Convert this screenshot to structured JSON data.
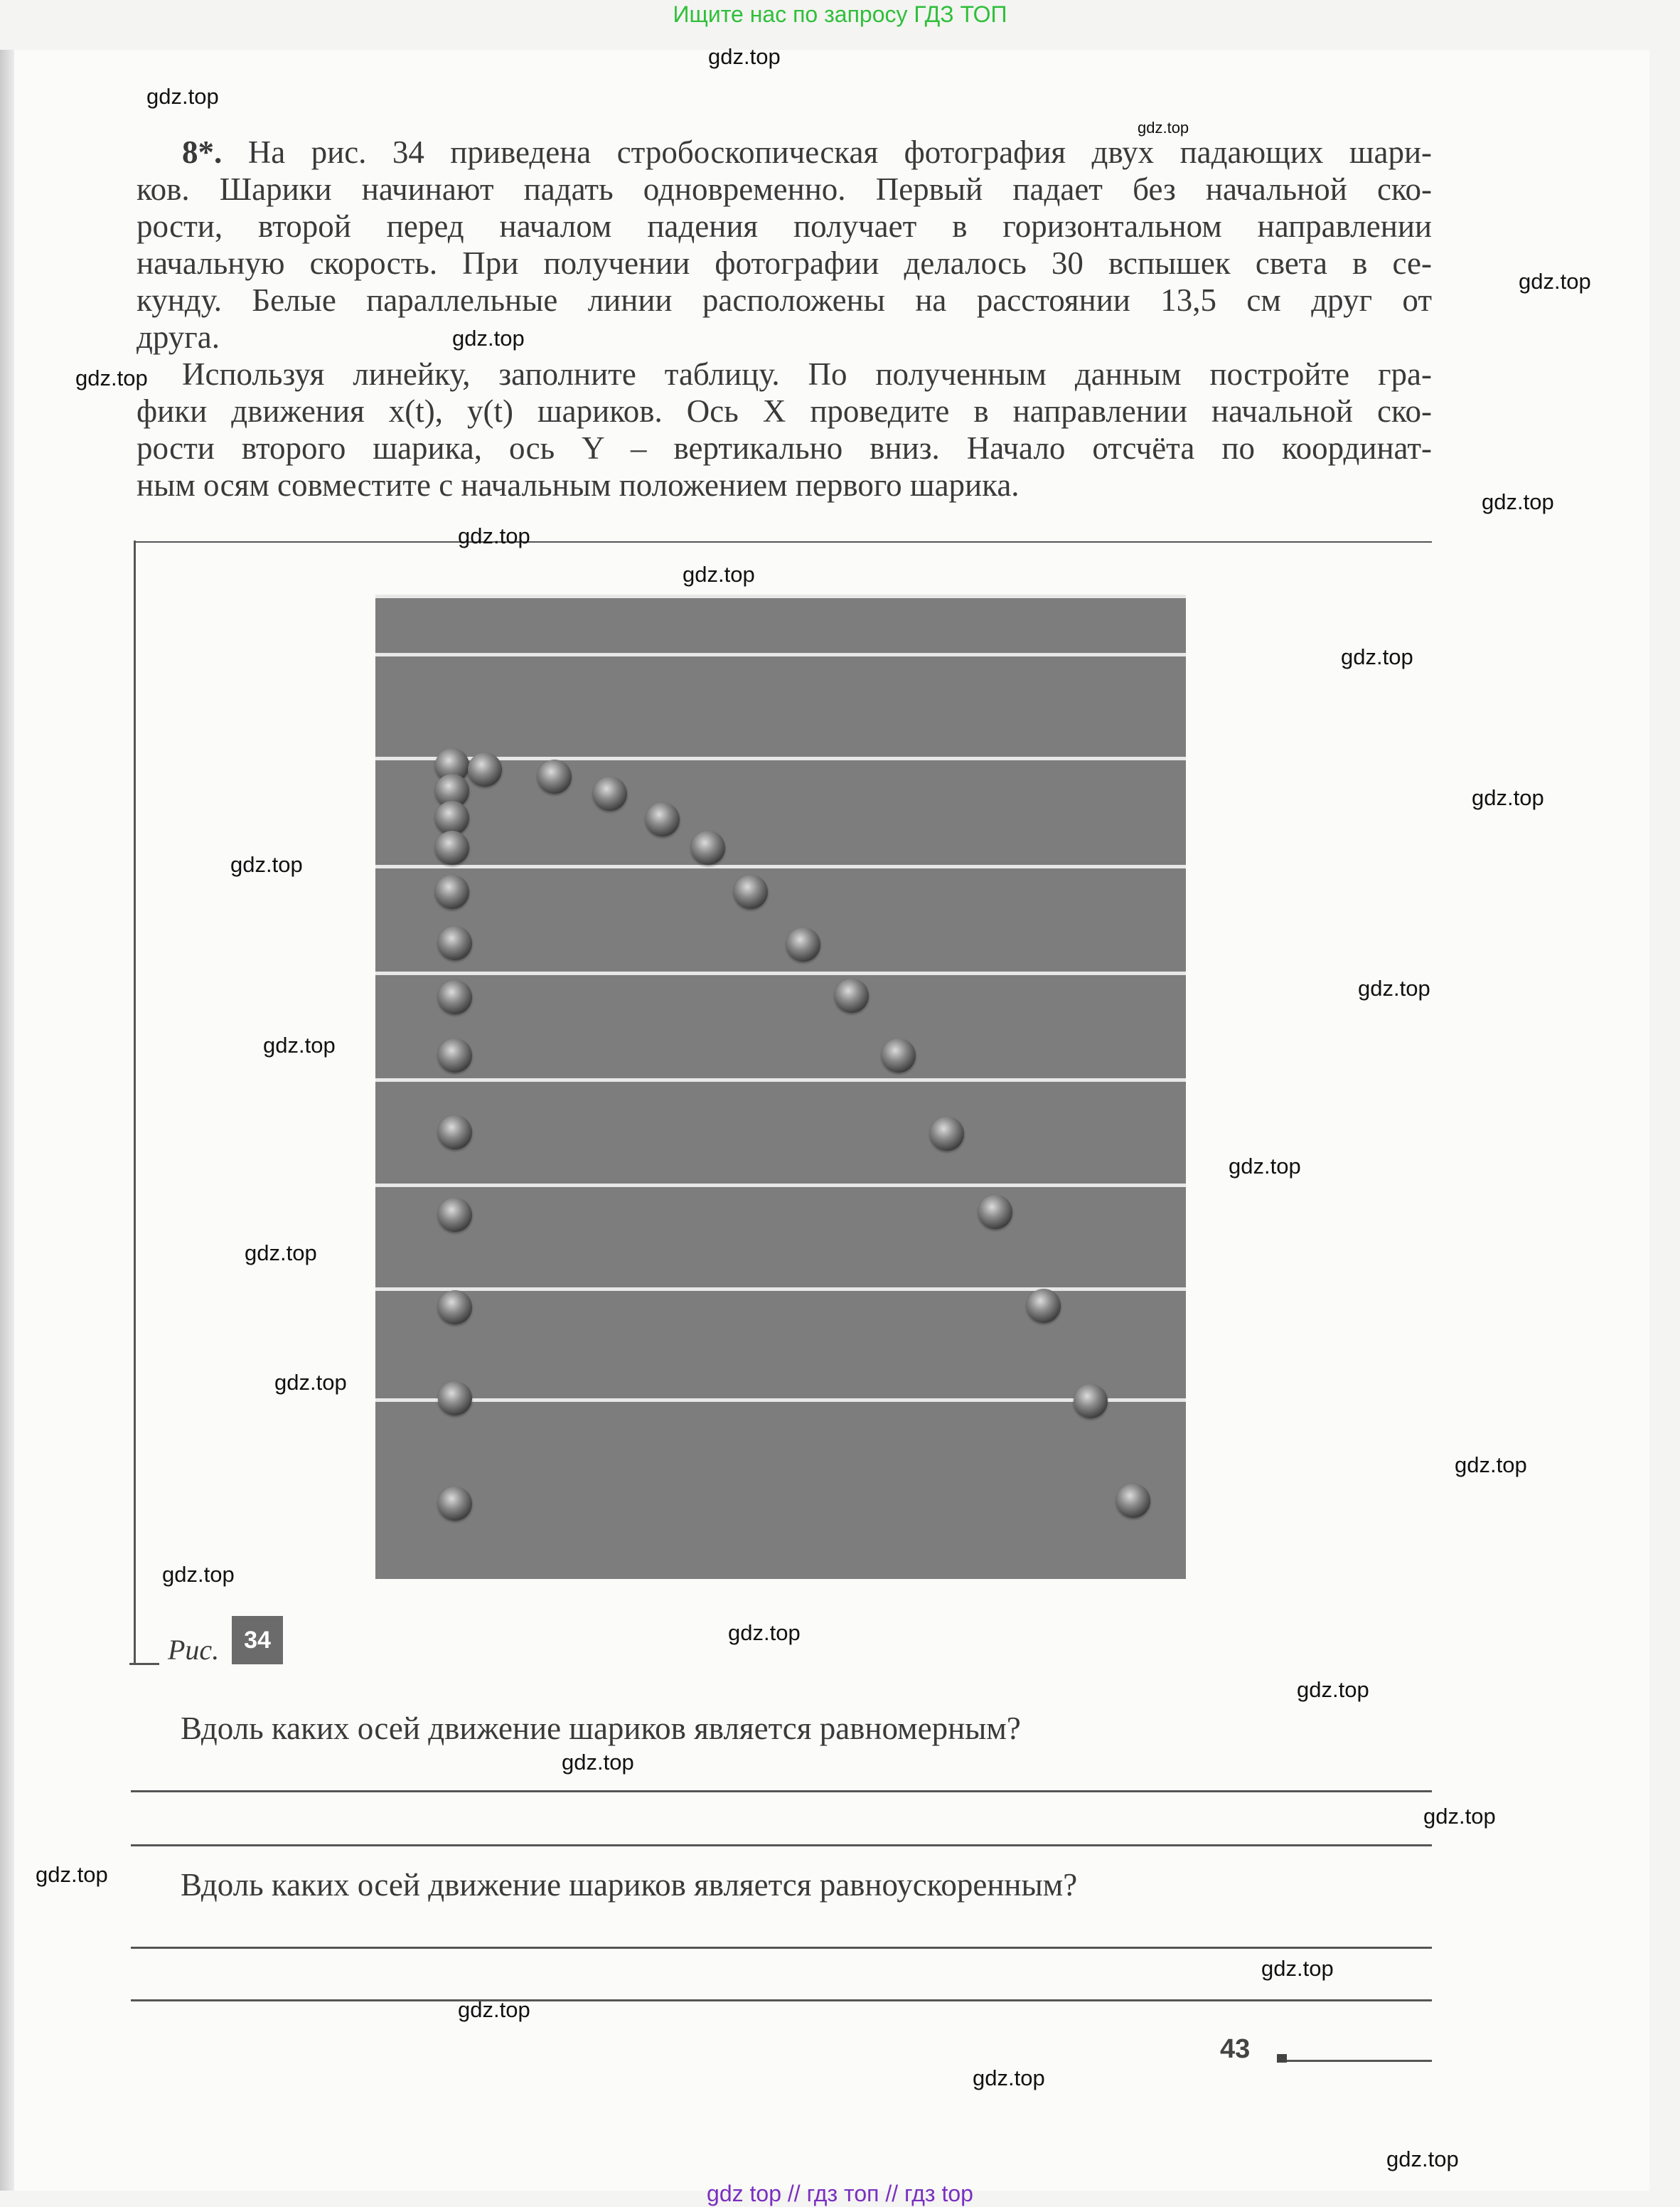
{
  "banner_top": "Ищите нас по запросу ГДЗ ТОП",
  "banner_bottom": "gdz top  //  гдз топ  //  гдз top",
  "task": {
    "number": "8*.",
    "lines": [
      "На рис. 34 приведена стробоскопическая фотография двух падающих шари-",
      "ков. Шарики начинают падать одновременно. Первый падает без начальной ско-",
      "рости, второй перед началом падения получает в горизонтальном направлении",
      "начальную скорость. При получении фотографии делалось 30 вспышек света в се-",
      "кунду. Белые параллельные линии расположены на расстоянии 13,5 см друг от",
      "друга.",
      "Используя линейку, заполните таблицу. По полученным данным постройте гра-",
      "фики движения x(t), y(t) шариков. Ось X проведите в направлении начальной ско-",
      "рости второго шарика, ось Y – вертикально вниз. Начало отсчёта по координат-",
      "ным осям совместите с начальным положением первого шарика."
    ]
  },
  "figure": {
    "label": "Рис.",
    "number": "34"
  },
  "questions": [
    "Вдоль каких осей движение шариков является равномерным?",
    "Вдоль каких осей движение шариков является равноускоренным?"
  ],
  "page_number": "43",
  "watermark": "gdz.top"
}
